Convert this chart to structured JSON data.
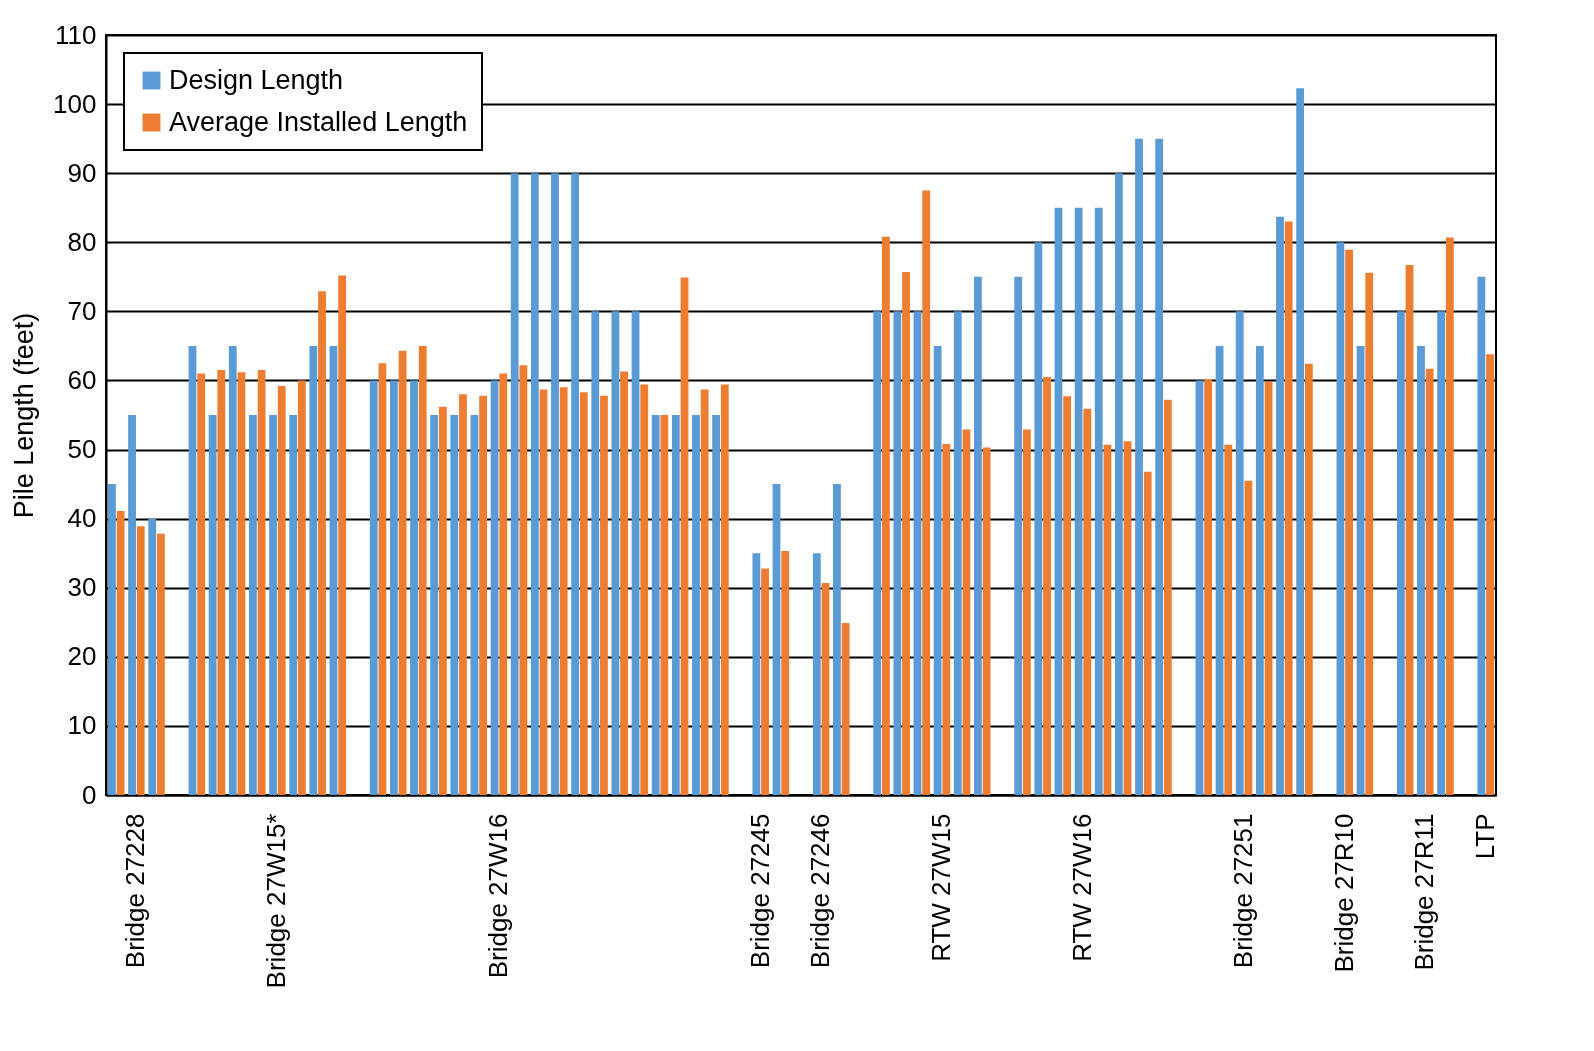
{
  "chart_data": {
    "type": "bar",
    "ylabel": "Pile Length (feet)",
    "categories": [
      null,
      "Bridge 27228",
      null,
      null,
      null,
      null,
      null,
      null,
      "Bridge 27W15*",
      null,
      null,
      null,
      null,
      null,
      null,
      null,
      null,
      null,
      null,
      "Bridge 27W16",
      null,
      null,
      null,
      null,
      null,
      null,
      null,
      null,
      null,
      null,
      null,
      null,
      "Bridge 27245",
      null,
      null,
      "Bridge 27246",
      null,
      null,
      null,
      null,
      null,
      "RTW 27W15",
      null,
      null,
      null,
      null,
      null,
      null,
      "RTW 27W16",
      null,
      null,
      null,
      null,
      null,
      null,
      null,
      "Bridge 27251",
      null,
      null,
      null,
      null,
      "Bridge 27R10",
      null,
      null,
      null,
      "Bridge 27R11",
      null,
      null,
      "LTP"
    ],
    "series": [
      {
        "name": "Design Length",
        "color": "#5b9bd5",
        "values": [
          45,
          55,
          40,
          null,
          65,
          55,
          65,
          55,
          55,
          55,
          65,
          65,
          null,
          60,
          60,
          60,
          55,
          55,
          55,
          60,
          90,
          90,
          90,
          90,
          70,
          70,
          70,
          55,
          55,
          55,
          55,
          null,
          35,
          45,
          null,
          35,
          45,
          null,
          70,
          70,
          70,
          65,
          70,
          75,
          null,
          75,
          80,
          85,
          85,
          85,
          90,
          95,
          95,
          null,
          60,
          65,
          70,
          65,
          83.7,
          102.3,
          null,
          80,
          65,
          null,
          70,
          65,
          70,
          null,
          75
        ]
      },
      {
        "name": "Average Installed Length",
        "color": "#ed7d31",
        "values": [
          41.1,
          38.9,
          37.8,
          null,
          61.0,
          61.5,
          61.2,
          61.5,
          59.2,
          60.0,
          72.9,
          75.2,
          null,
          62.5,
          64.3,
          65.0,
          56.2,
          58.0,
          57.8,
          61.0,
          62.2,
          58.7,
          59.0,
          58.3,
          57.8,
          61.3,
          59.4,
          55.0,
          74.9,
          58.7,
          59.4,
          null,
          32.8,
          35.3,
          null,
          30.7,
          24.9,
          null,
          80.8,
          75.7,
          87.5,
          50.8,
          52.9,
          50.3,
          null,
          52.9,
          60.5,
          57.7,
          55.9,
          50.7,
          51.2,
          46.8,
          57.2,
          null,
          60.2,
          50.7,
          45.5,
          59.8,
          83.0,
          62.4,
          null,
          78.9,
          75.6,
          null,
          76.7,
          61.7,
          80.7,
          null,
          63.8
        ]
      }
    ],
    "ylim": [
      0,
      110
    ],
    "yticks": [
      0,
      10,
      20,
      30,
      40,
      50,
      60,
      70,
      80,
      90,
      100,
      110
    ],
    "grid": "y",
    "legend": "top left"
  }
}
